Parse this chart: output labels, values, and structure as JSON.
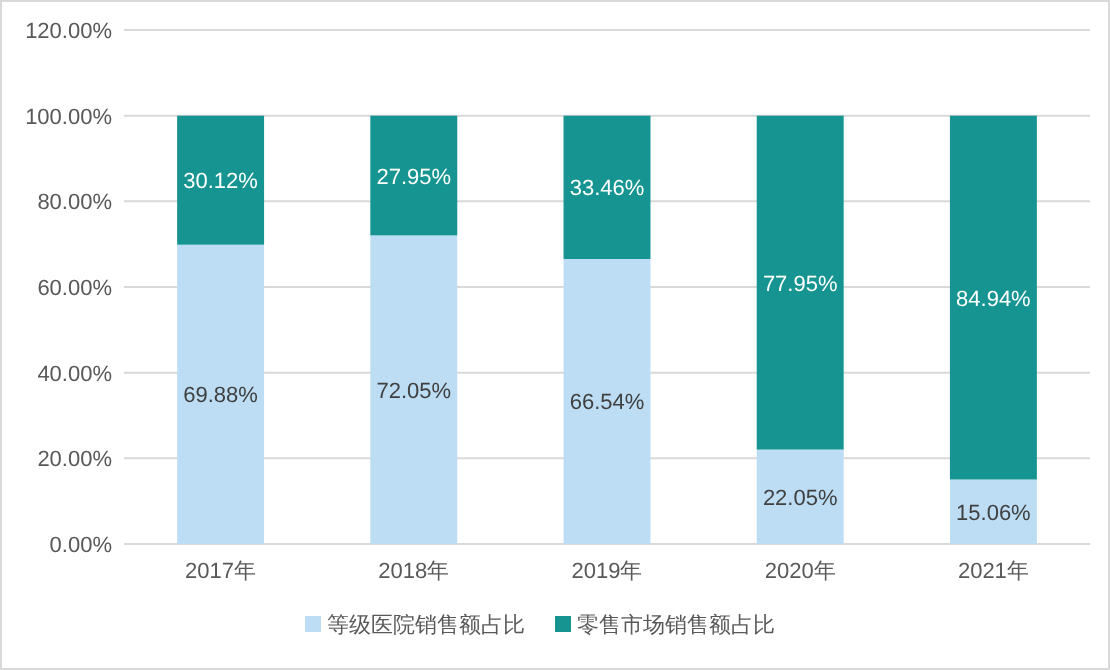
{
  "chart_data": {
    "type": "bar",
    "stacked": true,
    "categories": [
      "2017年",
      "2018年",
      "2019年",
      "2020年",
      "2021年"
    ],
    "series": [
      {
        "name": "等级医院销售额占比",
        "color": "#bdddf4",
        "values": [
          69.88,
          72.05,
          66.54,
          22.05,
          15.06
        ],
        "value_labels": [
          "69.88%",
          "72.05%",
          "66.54%",
          "22.05%",
          "15.06%"
        ]
      },
      {
        "name": "零售市场销售额占比",
        "color": "#159491",
        "values": [
          30.12,
          27.95,
          33.46,
          77.95,
          84.94
        ],
        "value_labels": [
          "30.12%",
          "27.95%",
          "33.46%",
          "77.95%",
          "84.94%"
        ]
      }
    ],
    "ylim": [
      0,
      120
    ],
    "yticks": [
      {
        "value": 0,
        "label": "0.00%"
      },
      {
        "value": 20,
        "label": "20.00%"
      },
      {
        "value": 40,
        "label": "40.00%"
      },
      {
        "value": 60,
        "label": "60.00%"
      },
      {
        "value": 80,
        "label": "80.00%"
      },
      {
        "value": 100,
        "label": "100.00%"
      },
      {
        "value": 120,
        "label": "120.00%"
      }
    ],
    "grid": "y",
    "legend": "bottom"
  }
}
